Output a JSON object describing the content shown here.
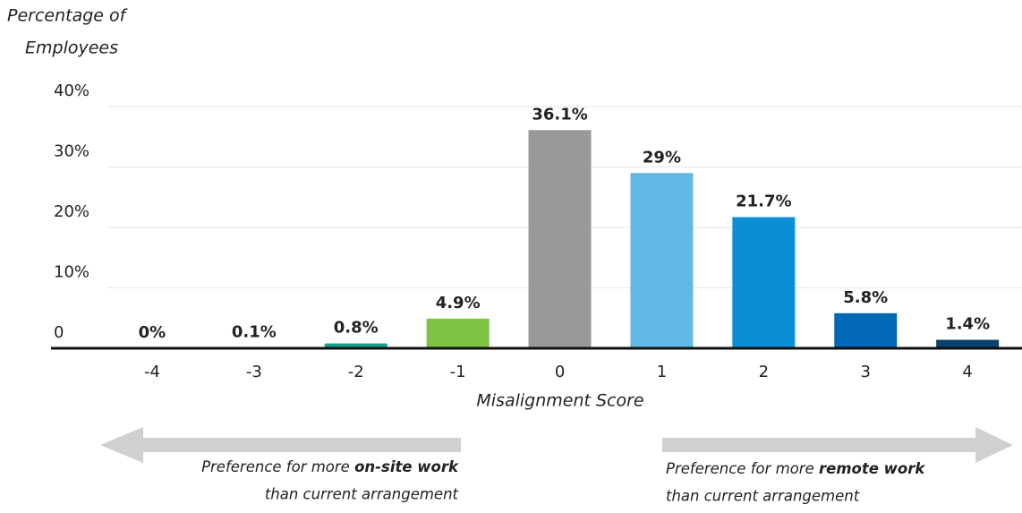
{
  "chart_data": {
    "type": "bar",
    "y_label": [
      "Percentage of",
      "Employees"
    ],
    "x_label": "Misalignment Score",
    "categories": [
      "-4",
      "-3",
      "-2",
      "-1",
      "0",
      "1",
      "2",
      "3",
      "4"
    ],
    "values": [
      0,
      0.1,
      0.8,
      4.9,
      36.1,
      29,
      21.7,
      5.8,
      1.4
    ],
    "value_labels": [
      "0%",
      "0.1%",
      "0.8%",
      "4.9%",
      "36.1%",
      "29%",
      "21.7%",
      "5.8%",
      "1.4%"
    ],
    "colors": [
      "#1a9e8a",
      "#1a9e8a",
      "#1a9e8a",
      "#7dc243",
      "#999999",
      "#62b8e5",
      "#0a8fd6",
      "#0068b5",
      "#0b3f6e"
    ],
    "ylim": [
      0,
      40
    ],
    "yticks": [
      0,
      {
        "value": 10,
        "label": "10%"
      },
      {
        "value": 20,
        "label": "20%"
      },
      {
        "value": 30,
        "label": "30%"
      },
      {
        "value": 40,
        "label": "40%"
      }
    ],
    "grid": true,
    "annotations": {
      "left": {
        "text": "Preference for more ",
        "emphasis": "on-site work",
        "line2": "than current arrangement"
      },
      "right": {
        "text": "Preference for more ",
        "emphasis": "remote work",
        "line2": "than current arrangement"
      }
    }
  }
}
